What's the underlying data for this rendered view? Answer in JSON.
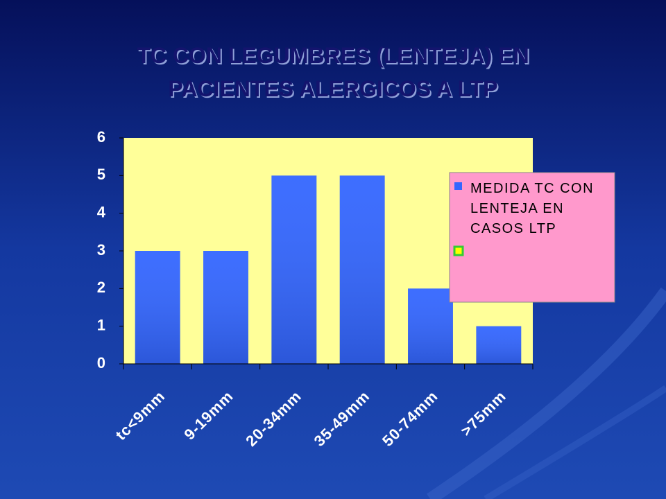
{
  "chart_data": {
    "type": "bar",
    "title": "TC  CON LEGUMBRES (LENTEJA) EN PACIENTES ALERGICOS A LTP",
    "categories": [
      "tc<9mm",
      "9-19mm",
      "20-34mm",
      "35-49mm",
      "50-74mm",
      ">75mm"
    ],
    "series": [
      {
        "name": "MEDIDA TC CON LENTEJA EN CASOS LTP",
        "color": "#3366ff",
        "values": [
          3,
          3,
          5,
          5,
          2,
          1
        ]
      }
    ],
    "ylim": [
      0,
      6
    ],
    "yticks": [
      0,
      1,
      2,
      3,
      4,
      5,
      6
    ],
    "grid": false,
    "legend": "right"
  }
}
